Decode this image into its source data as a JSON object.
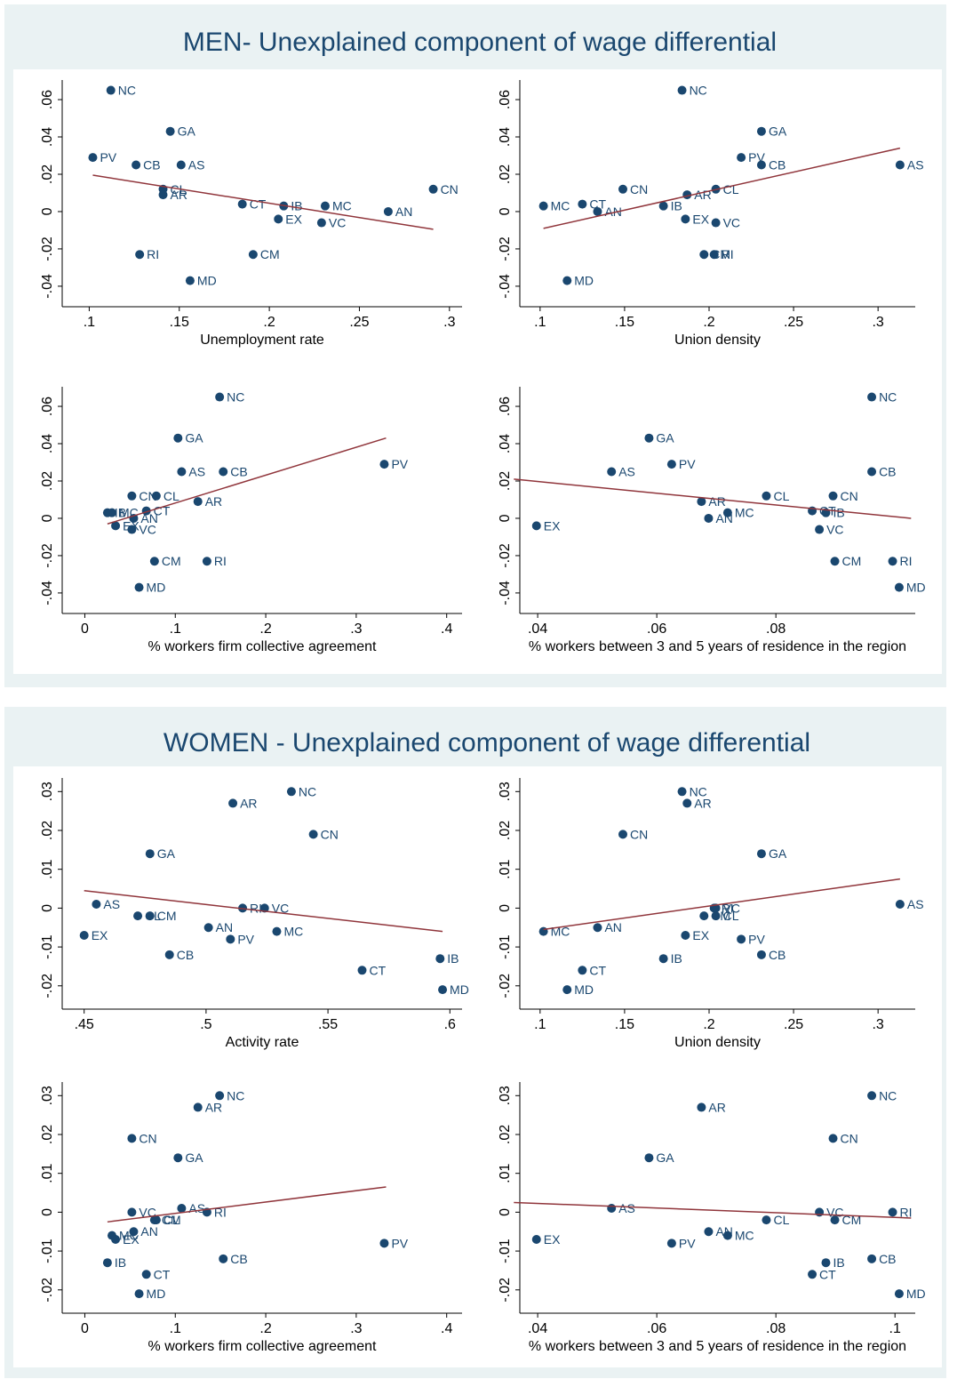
{
  "panels": [
    {
      "title": "MEN- Unexplained component of wage differential",
      "charts": [
        {
          "type": "scatter",
          "xlabel": "Unemployment rate",
          "color": "#1a476f",
          "point_labels": [
            "NC",
            "GA",
            "PV",
            "CB",
            "AS",
            "CL",
            "AR",
            "CT",
            "IB",
            "MC",
            "CN",
            "AN",
            "EX",
            "VC",
            "RI",
            "CM",
            "MD"
          ],
          "x": [
            0.112,
            0.145,
            0.102,
            0.126,
            0.151,
            0.141,
            0.141,
            0.185,
            0.208,
            0.231,
            0.291,
            0.266,
            0.205,
            0.229,
            0.128,
            0.191,
            0.156
          ],
          "values": [
            0.065,
            0.043,
            0.029,
            0.025,
            0.025,
            0.012,
            0.009,
            0.004,
            0.003,
            0.003,
            0.012,
            0,
            -0.004,
            -0.006,
            -0.023,
            -0.023,
            -0.037
          ],
          "fit": {
            "color": "#90353b",
            "x": [
              0.102,
              0.291
            ],
            "values": [
              0.0195,
              -0.0095
            ]
          },
          "xlim": [
            0.085,
            0.307
          ],
          "ylim": [
            -0.051,
            0.0705
          ],
          "xticks": [
            {
              "value": 0.1,
              "label": ".1"
            },
            {
              "value": 0.15,
              "label": ".15"
            },
            {
              "value": 0.2,
              "label": ".2"
            },
            {
              "value": 0.25,
              "label": ".25"
            },
            {
              "value": 0.3,
              "label": ".3"
            }
          ],
          "yticks": [
            {
              "value": -0.04,
              "label": "-.04"
            },
            {
              "value": -0.02,
              "label": "-.02"
            },
            0,
            {
              "value": 0.02,
              "label": ".02"
            },
            {
              "value": 0.04,
              "label": ".04"
            },
            {
              "value": 0.06,
              "label": ".06"
            }
          ]
        },
        {
          "type": "scatter",
          "xlabel": "Union density",
          "color": "#1a476f",
          "point_labels": [
            "NC",
            "GA",
            "PV",
            "CB",
            "AS",
            "CL",
            "AR",
            "CT",
            "IB",
            "MC",
            "CN",
            "AN",
            "EX",
            "VC",
            "RI",
            "CM",
            "MD"
          ],
          "x": [
            0.184,
            0.231,
            0.219,
            0.231,
            0.313,
            0.204,
            0.187,
            0.125,
            0.173,
            0.102,
            0.149,
            0.134,
            0.186,
            0.204,
            0.203,
            0.197,
            0.116
          ],
          "values": [
            0.065,
            0.043,
            0.029,
            0.025,
            0.025,
            0.012,
            0.009,
            0.004,
            0.003,
            0.003,
            0.012,
            0,
            -0.004,
            -0.006,
            -0.023,
            -0.023,
            -0.037
          ],
          "fit": {
            "color": "#90353b",
            "x": [
              0.102,
              0.313
            ],
            "values": [
              -0.009,
              0.034
            ]
          },
          "xlim": [
            0.088,
            0.322
          ],
          "ylim": [
            -0.051,
            0.0705
          ],
          "xticks": [
            {
              "value": 0.1,
              "label": ".1"
            },
            {
              "value": 0.15,
              "label": ".15"
            },
            {
              "value": 0.2,
              "label": ".2"
            },
            {
              "value": 0.25,
              "label": ".25"
            },
            {
              "value": 0.3,
              "label": ".3"
            }
          ],
          "yticks": [
            {
              "value": -0.04,
              "label": "-.04"
            },
            {
              "value": -0.02,
              "label": "-.02"
            },
            0,
            {
              "value": 0.02,
              "label": ".02"
            },
            {
              "value": 0.04,
              "label": ".04"
            },
            {
              "value": 0.06,
              "label": ".06"
            }
          ]
        },
        {
          "type": "scatter",
          "xlabel": "% workers firm collective agreement",
          "color": "#1a476f",
          "point_labels": [
            "NC",
            "GA",
            "PV",
            "CB",
            "AS",
            "CL",
            "AR",
            "CT",
            "IB",
            "MC",
            "CN",
            "AN",
            "EX",
            "VC",
            "RI",
            "CM",
            "MD"
          ],
          "x": [
            0.149,
            0.103,
            0.331,
            0.153,
            0.107,
            0.079,
            0.125,
            0.068,
            0.025,
            0.03,
            0.052,
            0.054,
            0.034,
            0.052,
            0.135,
            0.077,
            0.06
          ],
          "values": [
            0.065,
            0.043,
            0.029,
            0.025,
            0.025,
            0.012,
            0.009,
            0.004,
            0.003,
            0.003,
            0.012,
            0,
            -0.004,
            -0.006,
            -0.023,
            -0.023,
            -0.037
          ],
          "fit": {
            "color": "#90353b",
            "x": [
              0.025,
              0.333
            ],
            "values": [
              -0.003,
              0.043
            ]
          },
          "xlim": [
            -0.025,
            0.417
          ],
          "ylim": [
            -0.051,
            0.0705
          ],
          "xticks": [
            0,
            {
              "value": 0.1,
              "label": ".1"
            },
            {
              "value": 0.2,
              "label": ".2"
            },
            {
              "value": 0.3,
              "label": ".3"
            },
            {
              "value": 0.4,
              "label": ".4"
            }
          ],
          "yticks": [
            {
              "value": -0.04,
              "label": "-.04"
            },
            {
              "value": -0.02,
              "label": "-.02"
            },
            0,
            {
              "value": 0.02,
              "label": ".02"
            },
            {
              "value": 0.04,
              "label": ".04"
            },
            {
              "value": 0.06,
              "label": ".06"
            }
          ]
        },
        {
          "type": "scatter",
          "xlabel": "% workers between 3 and 5 years of residence in the region",
          "color": "#1a476f",
          "point_labels": [
            "NC",
            "GA",
            "PV",
            "CB",
            "AS",
            "CL",
            "AR",
            "CT",
            "IB",
            "MC",
            "CN",
            "AN",
            "EX",
            "VC",
            "RI",
            "CM",
            "MD"
          ],
          "x": [
            0.0961,
            0.0587,
            0.0625,
            0.0961,
            0.0524,
            0.0784,
            0.0675,
            0.0861,
            0.0884,
            0.0719,
            0.0896,
            0.0687,
            0.0398,
            0.0873,
            0.0996,
            0.0899,
            0.1007
          ],
          "values": [
            0.065,
            0.043,
            0.029,
            0.025,
            0.025,
            0.012,
            0.009,
            0.004,
            0.003,
            0.003,
            0.012,
            0,
            -0.004,
            -0.006,
            -0.023,
            -0.023,
            -0.037
          ],
          "fit": {
            "color": "#90353b",
            "x": [
              0.036,
              0.1027
            ],
            "values": [
              0.021,
              0
            ]
          },
          "xlim": [
            0.037,
            0.1034
          ],
          "ylim": [
            -0.051,
            0.0705
          ],
          "xticks": [
            {
              "value": 0.04,
              "label": ".04"
            },
            {
              "value": 0.06,
              "label": ".06"
            },
            {
              "value": 0.08,
              "label": ".08"
            }
          ],
          "yticks": [
            {
              "value": -0.04,
              "label": "-.04"
            },
            {
              "value": -0.02,
              "label": "-.02"
            },
            0,
            {
              "value": 0.02,
              "label": ".02"
            },
            {
              "value": 0.04,
              "label": ".04"
            },
            {
              "value": 0.06,
              "label": ".06"
            }
          ]
        }
      ]
    },
    {
      "title": "WOMEN - Unexplained component of wage differential",
      "charts": [
        {
          "type": "scatter",
          "xlabel": "Activity rate",
          "color": "#1a476f",
          "point_labels": [
            "NC",
            "GA",
            "PV",
            "CB",
            "AS",
            "CL",
            "AR",
            "CT",
            "IB",
            "MC",
            "CN",
            "AN",
            "EX",
            "VC",
            "RI",
            "CM",
            "MD"
          ],
          "x": [
            0.535,
            0.477,
            0.51,
            0.485,
            0.455,
            0.472,
            0.511,
            0.564,
            0.596,
            0.529,
            0.544,
            0.501,
            0.45,
            0.524,
            0.515,
            0.477,
            0.597
          ],
          "values": [
            0.03,
            0.014,
            -0.008,
            -0.012,
            0.001,
            -0.002,
            0.027,
            -0.016,
            -0.013,
            -0.006,
            0.019,
            -0.005,
            -0.007,
            0,
            0,
            -0.002,
            -0.021
          ],
          "fit": {
            "color": "#90353b",
            "x": [
              0.45,
              0.597
            ],
            "values": [
              0.0045,
              -0.006
            ]
          },
          "xlim": [
            0.441,
            0.605
          ],
          "ylim": [
            -0.026,
            0.0335
          ],
          "xticks": [
            {
              "value": 0.45,
              "label": ".45"
            },
            {
              "value": 0.5,
              "label": ".5"
            },
            {
              "value": 0.55,
              "label": ".55"
            },
            {
              "value": 0.6,
              "label": ".6"
            }
          ],
          "yticks": [
            {
              "value": -0.02,
              "label": "-.02"
            },
            {
              "value": -0.01,
              "label": "-.01"
            },
            0,
            {
              "value": 0.01,
              "label": ".01"
            },
            {
              "value": 0.02,
              "label": ".02"
            },
            {
              "value": 0.03,
              "label": ".03"
            }
          ]
        },
        {
          "type": "scatter",
          "xlabel": "Union density",
          "color": "#1a476f",
          "point_labels": [
            "NC",
            "GA",
            "PV",
            "CB",
            "AS",
            "CL",
            "AR",
            "CT",
            "IB",
            "MC",
            "CN",
            "AN",
            "EX",
            "VC",
            "RI",
            "CM",
            "MD"
          ],
          "x": [
            0.184,
            0.231,
            0.219,
            0.231,
            0.313,
            0.204,
            0.187,
            0.125,
            0.173,
            0.102,
            0.149,
            0.134,
            0.186,
            0.204,
            0.203,
            0.197,
            0.116
          ],
          "values": [
            0.03,
            0.014,
            -0.008,
            -0.012,
            0.001,
            -0.002,
            0.027,
            -0.016,
            -0.013,
            -0.006,
            0.019,
            -0.005,
            -0.007,
            0,
            0,
            -0.002,
            -0.021
          ],
          "fit": {
            "color": "#90353b",
            "x": [
              0.102,
              0.313
            ],
            "values": [
              -0.0055,
              0.0075
            ]
          },
          "xlim": [
            0.088,
            0.322
          ],
          "ylim": [
            -0.026,
            0.0335
          ],
          "xticks": [
            {
              "value": 0.1,
              "label": ".1"
            },
            {
              "value": 0.15,
              "label": ".15"
            },
            {
              "value": 0.2,
              "label": ".2"
            },
            {
              "value": 0.25,
              "label": ".25"
            },
            {
              "value": 0.3,
              "label": ".3"
            }
          ],
          "yticks": [
            {
              "value": -0.02,
              "label": "-.02"
            },
            {
              "value": -0.01,
              "label": "-.01"
            },
            0,
            {
              "value": 0.01,
              "label": ".01"
            },
            {
              "value": 0.02,
              "label": ".02"
            },
            {
              "value": 0.03,
              "label": ".03"
            }
          ]
        },
        {
          "type": "scatter",
          "xlabel": "% workers firm collective agreement",
          "color": "#1a476f",
          "point_labels": [
            "NC",
            "GA",
            "PV",
            "CB",
            "AS",
            "CL",
            "AR",
            "CT",
            "IB",
            "MC",
            "CN",
            "AN",
            "EX",
            "VC",
            "RI",
            "CM",
            "MD"
          ],
          "x": [
            0.149,
            0.103,
            0.331,
            0.153,
            0.107,
            0.079,
            0.125,
            0.068,
            0.025,
            0.03,
            0.052,
            0.054,
            0.034,
            0.052,
            0.135,
            0.077,
            0.06
          ],
          "values": [
            0.03,
            0.014,
            -0.008,
            -0.012,
            0.001,
            -0.002,
            0.027,
            -0.016,
            -0.013,
            -0.006,
            0.019,
            -0.005,
            -0.007,
            0,
            0,
            -0.002,
            -0.021
          ],
          "fit": {
            "color": "#90353b",
            "x": [
              0.025,
              0.333
            ],
            "values": [
              -0.0025,
              0.0065
            ]
          },
          "xlim": [
            -0.025,
            0.417
          ],
          "ylim": [
            -0.026,
            0.0335
          ],
          "xticks": [
            0,
            {
              "value": 0.1,
              "label": ".1"
            },
            {
              "value": 0.2,
              "label": ".2"
            },
            {
              "value": 0.3,
              "label": ".3"
            },
            {
              "value": 0.4,
              "label": ".4"
            }
          ],
          "yticks": [
            {
              "value": -0.02,
              "label": "-.02"
            },
            {
              "value": -0.01,
              "label": "-.01"
            },
            0,
            {
              "value": 0.01,
              "label": ".01"
            },
            {
              "value": 0.02,
              "label": ".02"
            },
            {
              "value": 0.03,
              "label": ".03"
            }
          ]
        },
        {
          "type": "scatter",
          "xlabel": "% workers between 3 and 5 years of residence in the region",
          "color": "#1a476f",
          "point_labels": [
            "NC",
            "GA",
            "PV",
            "CB",
            "AS",
            "CL",
            "AR",
            "CT",
            "IB",
            "MC",
            "CN",
            "AN",
            "EX",
            "VC",
            "RI",
            "CM",
            "MD"
          ],
          "x": [
            0.0961,
            0.0587,
            0.0625,
            0.0961,
            0.0524,
            0.0784,
            0.0675,
            0.0861,
            0.0884,
            0.0719,
            0.0896,
            0.0687,
            0.0398,
            0.0873,
            0.0996,
            0.0899,
            0.1007
          ],
          "values": [
            0.03,
            0.014,
            -0.008,
            -0.012,
            0.001,
            -0.002,
            0.027,
            -0.016,
            -0.013,
            -0.006,
            0.019,
            -0.005,
            -0.007,
            0,
            0,
            -0.002,
            -0.021
          ],
          "fit": {
            "color": "#90353b",
            "x": [
              0.036,
              0.1027
            ],
            "values": [
              0.0025,
              -0.0015
            ]
          },
          "xlim": [
            0.037,
            0.1034
          ],
          "ylim": [
            -0.026,
            0.0335
          ],
          "xticks": [
            {
              "value": 0.04,
              "label": ".04"
            },
            {
              "value": 0.06,
              "label": ".06"
            },
            {
              "value": 0.08,
              "label": ".08"
            },
            {
              "value": 0.1,
              "label": ".1"
            }
          ],
          "yticks": [
            {
              "value": -0.02,
              "label": "-.02"
            },
            {
              "value": -0.01,
              "label": "-.01"
            },
            0,
            {
              "value": 0.01,
              "label": ".01"
            },
            {
              "value": 0.02,
              "label": ".02"
            },
            {
              "value": 0.03,
              "label": ".03"
            }
          ]
        }
      ]
    }
  ]
}
